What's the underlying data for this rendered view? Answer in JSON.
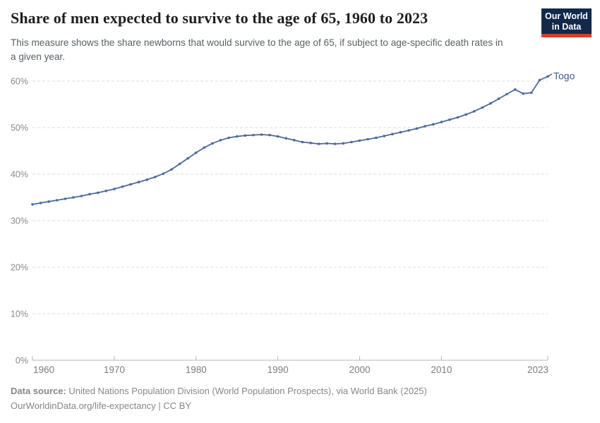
{
  "header": {
    "title": "Share of men expected to survive to the age of 65, 1960 to 2023",
    "subtitle": "This measure shows the share newborns that would survive to the age of 65, if subject to age-specific death rates in a given year.",
    "logo": {
      "line1": "Our World",
      "line2": "in Data",
      "bg_color": "#12294b",
      "accent_color": "#d93b32"
    }
  },
  "chart_data": {
    "type": "line",
    "title": "Share of men expected to survive to the age of 65, 1960 to 2023",
    "entity": "Togo",
    "unit": "%",
    "x": [
      1960,
      1961,
      1962,
      1963,
      1964,
      1965,
      1966,
      1967,
      1968,
      1969,
      1970,
      1971,
      1972,
      1973,
      1974,
      1975,
      1976,
      1977,
      1978,
      1979,
      1980,
      1981,
      1982,
      1983,
      1984,
      1985,
      1986,
      1987,
      1988,
      1989,
      1990,
      1991,
      1992,
      1993,
      1994,
      1995,
      1996,
      1997,
      1998,
      1999,
      2000,
      2001,
      2002,
      2003,
      2004,
      2005,
      2006,
      2007,
      2008,
      2009,
      2010,
      2011,
      2012,
      2013,
      2014,
      2015,
      2016,
      2017,
      2018,
      2019,
      2020,
      2021,
      2022,
      2023
    ],
    "values": [
      33.5,
      33.8,
      34.1,
      34.4,
      34.7,
      35.0,
      35.3,
      35.7,
      36.0,
      36.4,
      36.8,
      37.3,
      37.8,
      38.3,
      38.8,
      39.4,
      40.1,
      41.0,
      42.2,
      43.4,
      44.6,
      45.7,
      46.6,
      47.3,
      47.8,
      48.1,
      48.3,
      48.4,
      48.5,
      48.4,
      48.1,
      47.7,
      47.3,
      46.9,
      46.7,
      46.5,
      46.6,
      46.5,
      46.6,
      46.9,
      47.2,
      47.5,
      47.8,
      48.2,
      48.6,
      49.0,
      49.4,
      49.8,
      50.3,
      50.7,
      51.2,
      51.7,
      52.2,
      52.8,
      53.5,
      54.3,
      55.2,
      56.2,
      57.2,
      58.2,
      57.3,
      57.5,
      60.2,
      61.0
    ],
    "xlabel": "",
    "ylabel": "",
    "xlim": [
      1960,
      2023
    ],
    "ylim": [
      0,
      60
    ],
    "xticks": [
      1960,
      1970,
      1980,
      1990,
      2000,
      2010,
      2023
    ],
    "yticks": [
      0,
      10,
      20,
      30,
      40,
      50,
      60
    ],
    "ytick_labels": [
      "0%",
      "10%",
      "20%",
      "30%",
      "40%",
      "50%",
      "60%"
    ],
    "grid": "dashed-horizontal",
    "legend_position": "end-of-line-label",
    "line_color": "#4c6a9c",
    "label_color": "#3d5c96",
    "gridline_color": "#dedede",
    "axis_color": "#b5b5b5",
    "tick_label_color": "#8a8a8a"
  },
  "footer": {
    "source_label": "Data source:",
    "source_text": " United Nations Population Division (World Population Prospects), via World Bank (2025)",
    "url_text": "OurWorldinData.org/life-expectancy",
    "separator": " | ",
    "license": "CC BY"
  }
}
